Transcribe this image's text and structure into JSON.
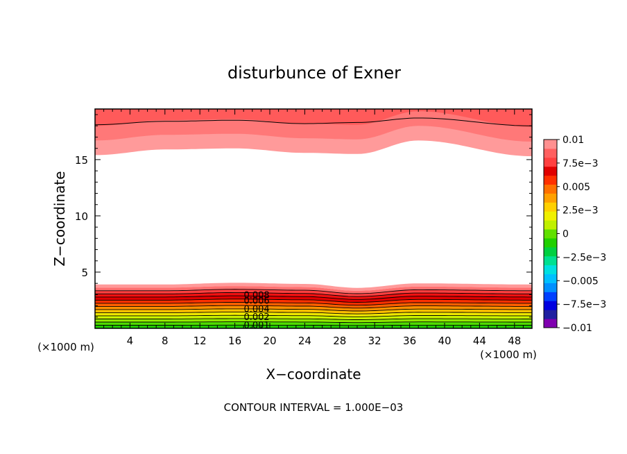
{
  "chart_data": {
    "type": "heatmap",
    "title": "disturbunce of Exner",
    "xlabel": "X−coordinate",
    "ylabel": "Z−coordinate",
    "x_unit": "(×1000 m)",
    "x_unit_right": "(×1000 m)",
    "footer": "CONTOUR INTERVAL = 1.000E−03",
    "xlim": [
      0,
      50
    ],
    "ylim": [
      0,
      19.5
    ],
    "x_ticks": [
      4,
      8,
      12,
      16,
      20,
      24,
      28,
      32,
      36,
      40,
      44,
      48
    ],
    "y_ticks": [
      5,
      10,
      15
    ],
    "contour_interval": 0.001,
    "contour_labels": [
      "0.008",
      "0.006",
      "0.004",
      "0.002",
      "0.001"
    ],
    "colorbar": {
      "tick_labels": [
        "0.01",
        "7.5e−3",
        "0.005",
        "2.5e−3",
        "0",
        "−2.5e−3",
        "−0.005",
        "−7.5e−3",
        "−0.01"
      ],
      "tick_values": [
        0.01,
        0.0075,
        0.005,
        0.0025,
        0,
        -0.0025,
        -0.005,
        -0.0075,
        -0.01
      ],
      "range": [
        -0.01,
        0.01
      ],
      "colors": [
        "#8000b0",
        "#2020a0",
        "#0000e0",
        "#0040ff",
        "#0090ff",
        "#00c0ff",
        "#00e0e0",
        "#00e090",
        "#00d040",
        "#20d000",
        "#60e000",
        "#c0f000",
        "#f0f000",
        "#ffd000",
        "#ffa000",
        "#ff7000",
        "#ff3000",
        "#e00000",
        "#ff4040",
        "#ff6060",
        "#ff9090"
      ]
    },
    "lower_layer_top_z": [
      3.9,
      3.9,
      4.05,
      3.95,
      3.6,
      4.0,
      3.9
    ],
    "upper_white_boundary_z": [
      15.4,
      15.9,
      16.0,
      15.6,
      15.5,
      16.7,
      15.3
    ],
    "upper_line_z": [
      18.1,
      18.4,
      18.5,
      18.2,
      18.3,
      18.7,
      18.0
    ],
    "profile_x": [
      0,
      8,
      16,
      24,
      30,
      37,
      50
    ]
  }
}
